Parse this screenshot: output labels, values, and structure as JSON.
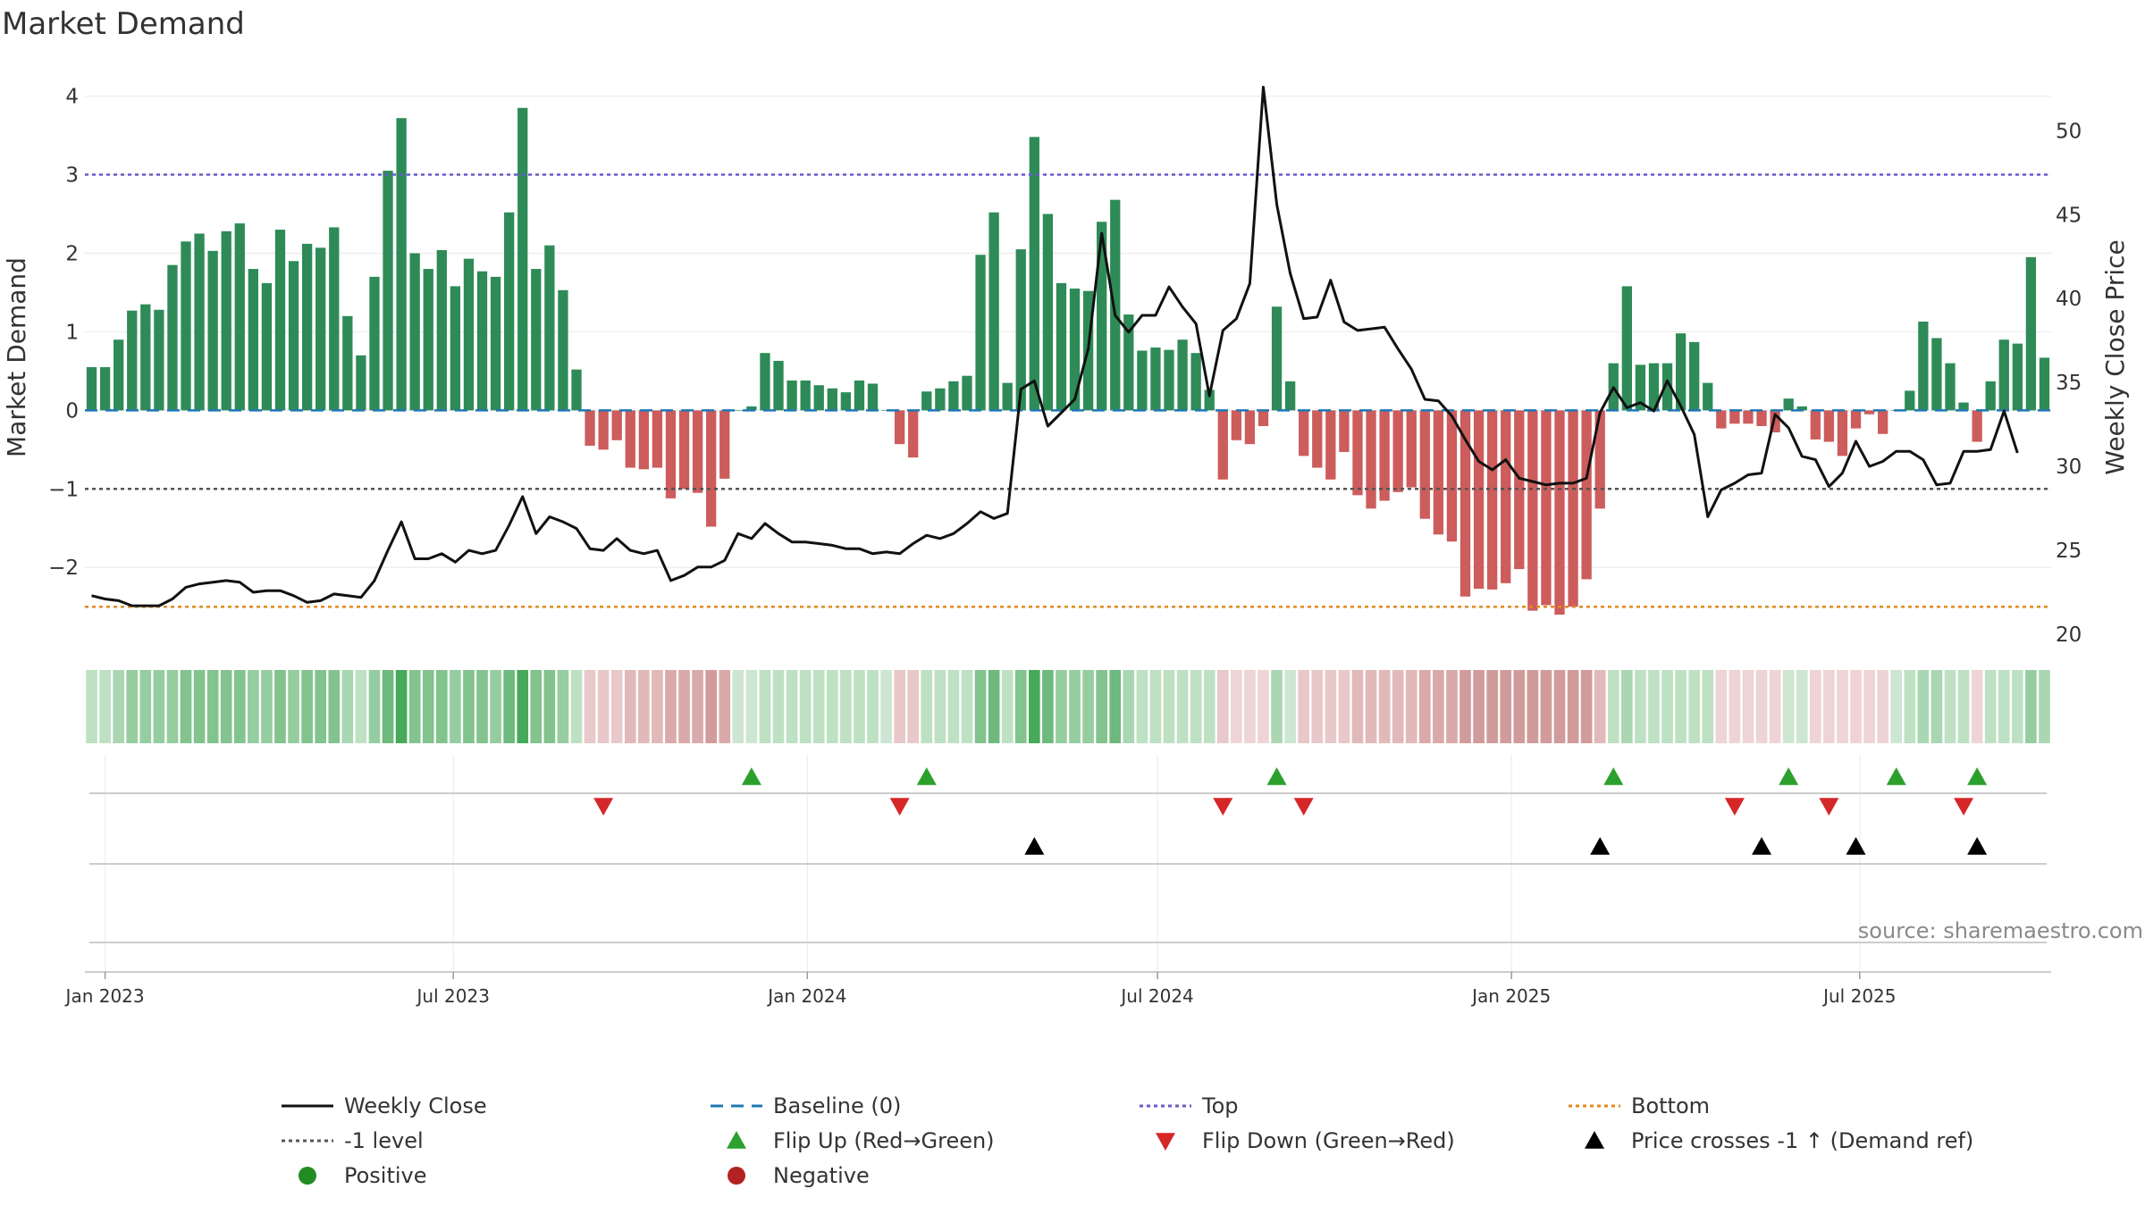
{
  "title": "Market Demand",
  "source_label": "source: sharemaestro.com",
  "colors": {
    "positive_bar": "#2e8b57",
    "negative_bar": "#cd5c5c",
    "close_line": "#111111",
    "baseline": "#1f77b4",
    "top": "#6a5acd",
    "bottom": "#e08a1e",
    "minus_one": "#555555",
    "flip_up": "#2ca02c",
    "flip_down": "#d62728",
    "cross": "#000000",
    "positive_dot": "#228b22",
    "negative_dot": "#b22222"
  },
  "chart_data": {
    "type": "bar+line",
    "title": "Market Demand",
    "ylabel_left": "Market Demand",
    "ylabel_right": "Weekly Close Price",
    "ylim_left": [
      -2.85,
      4.2
    ],
    "yticks_left": [
      4,
      3,
      2,
      1,
      0,
      -1,
      -2
    ],
    "ytick_labels_left": [
      "4",
      "3",
      "2",
      "1",
      "0",
      "−1",
      "−2"
    ],
    "ylim_right": [
      20,
      53
    ],
    "yticks_right": [
      50,
      45,
      40,
      35,
      30,
      25,
      20
    ],
    "ytick_labels_right": [
      "50",
      "45",
      "40",
      "35",
      "30",
      "25",
      "20"
    ],
    "x_start": "2022-12-25",
    "x_ticks": [
      {
        "date": "2023-01-01",
        "label": "Jan 2023"
      },
      {
        "date": "2023-07-01",
        "label": "Jul 2023"
      },
      {
        "date": "2024-01-01",
        "label": "Jan 2024"
      },
      {
        "date": "2024-07-01",
        "label": "Jul 2024"
      },
      {
        "date": "2025-01-01",
        "label": "Jan 2025"
      },
      {
        "date": "2025-07-01",
        "label": "Jul 2025"
      }
    ],
    "reference_lines": {
      "baseline": 0,
      "top": 3.0,
      "bottom": -2.5,
      "minus_one": -1.0
    },
    "demand": [
      0.55,
      0.55,
      0.9,
      1.27,
      1.35,
      1.28,
      1.85,
      2.15,
      2.25,
      2.03,
      2.28,
      2.38,
      1.8,
      1.62,
      2.3,
      1.9,
      2.12,
      2.07,
      2.33,
      1.2,
      0.7,
      1.7,
      3.05,
      3.72,
      2.0,
      1.8,
      2.04,
      1.58,
      1.93,
      1.77,
      1.7,
      2.52,
      3.85,
      1.8,
      2.1,
      1.53,
      0.52,
      -0.45,
      -0.5,
      -0.38,
      -0.73,
      -0.75,
      -0.73,
      -1.12,
      -1.0,
      -1.05,
      -1.48,
      -0.87,
      0.0,
      0.05,
      0.73,
      0.63,
      0.38,
      0.38,
      0.32,
      0.28,
      0.23,
      0.38,
      0.34,
      0.0,
      -0.43,
      -0.6,
      0.24,
      0.28,
      0.37,
      0.44,
      1.98,
      2.52,
      0.35,
      2.05,
      3.48,
      2.5,
      1.62,
      1.55,
      1.52,
      2.4,
      2.68,
      1.22,
      0.76,
      0.8,
      0.77,
      0.9,
      0.73,
      0.26,
      -0.88,
      -0.38,
      -0.43,
      -0.2,
      1.32,
      0.37,
      -0.58,
      -0.73,
      -0.88,
      -0.53,
      -1.08,
      -1.25,
      -1.15,
      -1.04,
      -0.98,
      -1.38,
      -1.58,
      -1.67,
      -2.37,
      -2.27,
      -2.28,
      -2.2,
      -2.02,
      -2.55,
      -2.48,
      -2.6,
      -2.5,
      -2.15,
      -1.25,
      0.6,
      1.58,
      0.58,
      0.6,
      0.6,
      0.98,
      0.87,
      0.35,
      -0.23,
      -0.17,
      -0.17,
      -0.2,
      -0.28,
      0.15,
      0.05,
      -0.37,
      -0.4,
      -0.58,
      -0.23,
      -0.05,
      -0.3,
      0.0,
      0.25,
      1.13,
      0.92,
      0.6,
      0.1,
      -0.4,
      0.37,
      0.9,
      0.85,
      1.95,
      0.67
    ],
    "close": [
      22.3,
      22.1,
      22.0,
      21.7,
      21.7,
      21.7,
      22.1,
      22.8,
      23.0,
      23.1,
      23.2,
      23.1,
      22.5,
      22.6,
      22.6,
      22.3,
      21.9,
      22.0,
      22.4,
      22.3,
      22.2,
      23.2,
      25.0,
      26.7,
      24.5,
      24.5,
      24.8,
      24.3,
      25.0,
      24.8,
      25.0,
      26.5,
      28.2,
      26.0,
      27.0,
      26.7,
      26.3,
      25.1,
      25.0,
      25.7,
      25.0,
      24.8,
      25.0,
      23.2,
      23.5,
      24.0,
      24.0,
      24.4,
      26.0,
      25.7,
      26.6,
      26.0,
      25.5,
      25.5,
      25.4,
      25.3,
      25.1,
      25.1,
      24.8,
      24.9,
      24.8,
      25.4,
      25.9,
      25.7,
      26.0,
      26.6,
      27.3,
      26.9,
      27.2,
      34.6,
      35.1,
      32.4,
      33.2,
      34.0,
      37.0,
      43.9,
      39.0,
      38.0,
      39.0,
      39.0,
      40.7,
      39.5,
      38.5,
      34.2,
      38.1,
      38.8,
      40.9,
      52.6,
      45.6,
      41.5,
      38.8,
      38.9,
      41.1,
      38.6,
      38.1,
      38.2,
      38.3,
      37.0,
      35.8,
      34.0,
      33.9,
      33.0,
      31.6,
      30.3,
      29.8,
      30.4,
      29.3,
      29.1,
      28.9,
      29.0,
      29.0,
      29.3,
      33.2,
      34.7,
      33.5,
      33.8,
      33.3,
      35.1,
      33.6,
      31.9,
      27.0,
      28.6,
      29.0,
      29.5,
      29.6,
      33.1,
      32.3,
      30.6,
      30.4,
      28.8,
      29.6,
      31.5,
      30.0,
      30.3,
      30.9,
      30.9,
      30.4,
      28.9,
      29.0,
      30.9,
      30.9,
      31.0,
      33.3,
      30.8
    ],
    "strip": [
      [
        190,
        225,
        195
      ],
      [
        190,
        225,
        195
      ],
      [
        170,
        215,
        178
      ],
      [
        150,
        205,
        160
      ],
      [
        150,
        205,
        160
      ],
      [
        150,
        205,
        160
      ],
      [
        150,
        205,
        160
      ],
      [
        130,
        195,
        142
      ],
      [
        130,
        195,
        142
      ],
      [
        130,
        195,
        142
      ],
      [
        130,
        195,
        142
      ],
      [
        130,
        195,
        142
      ],
      [
        150,
        205,
        160
      ],
      [
        150,
        205,
        160
      ],
      [
        130,
        195,
        142
      ],
      [
        150,
        205,
        160
      ],
      [
        130,
        195,
        142
      ],
      [
        130,
        195,
        142
      ],
      [
        130,
        195,
        142
      ],
      [
        170,
        215,
        178
      ],
      [
        190,
        225,
        195
      ],
      [
        150,
        205,
        160
      ],
      [
        110,
        185,
        125
      ],
      [
        70,
        170,
        90
      ],
      [
        130,
        195,
        142
      ],
      [
        130,
        195,
        142
      ],
      [
        130,
        195,
        142
      ],
      [
        150,
        205,
        160
      ],
      [
        130,
        195,
        142
      ],
      [
        130,
        195,
        142
      ],
      [
        150,
        205,
        160
      ],
      [
        110,
        185,
        125
      ],
      [
        70,
        170,
        90
      ],
      [
        130,
        195,
        142
      ],
      [
        130,
        195,
        142
      ],
      [
        150,
        205,
        160
      ],
      [
        190,
        225,
        195
      ],
      [
        232,
        200,
        200
      ],
      [
        232,
        200,
        200
      ],
      [
        232,
        200,
        200
      ],
      [
        225,
        185,
        185
      ],
      [
        225,
        185,
        185
      ],
      [
        225,
        185,
        185
      ],
      [
        218,
        170,
        170
      ],
      [
        218,
        170,
        170
      ],
      [
        218,
        170,
        170
      ],
      [
        210,
        155,
        155
      ],
      [
        218,
        170,
        170
      ],
      [
        205,
        230,
        210
      ],
      [
        205,
        230,
        210
      ],
      [
        190,
        225,
        195
      ],
      [
        190,
        225,
        195
      ],
      [
        190,
        225,
        195
      ],
      [
        190,
        225,
        195
      ],
      [
        190,
        225,
        195
      ],
      [
        190,
        225,
        195
      ],
      [
        190,
        225,
        195
      ],
      [
        190,
        225,
        195
      ],
      [
        190,
        225,
        195
      ],
      [
        205,
        230,
        210
      ],
      [
        232,
        200,
        200
      ],
      [
        232,
        200,
        200
      ],
      [
        190,
        225,
        195
      ],
      [
        190,
        225,
        195
      ],
      [
        190,
        225,
        195
      ],
      [
        190,
        225,
        195
      ],
      [
        130,
        195,
        142
      ],
      [
        110,
        185,
        125
      ],
      [
        190,
        225,
        195
      ],
      [
        130,
        195,
        142
      ],
      [
        70,
        170,
        90
      ],
      [
        110,
        185,
        125
      ],
      [
        150,
        205,
        160
      ],
      [
        150,
        205,
        160
      ],
      [
        150,
        205,
        160
      ],
      [
        130,
        195,
        142
      ],
      [
        110,
        185,
        125
      ],
      [
        170,
        215,
        178
      ],
      [
        190,
        225,
        195
      ],
      [
        190,
        225,
        195
      ],
      [
        190,
        225,
        195
      ],
      [
        190,
        225,
        195
      ],
      [
        190,
        225,
        195
      ],
      [
        190,
        225,
        195
      ],
      [
        232,
        200,
        200
      ],
      [
        238,
        212,
        212
      ],
      [
        238,
        212,
        212
      ],
      [
        238,
        212,
        212
      ],
      [
        170,
        215,
        178
      ],
      [
        205,
        230,
        210
      ],
      [
        232,
        200,
        200
      ],
      [
        232,
        200,
        200
      ],
      [
        232,
        200,
        200
      ],
      [
        232,
        200,
        200
      ],
      [
        225,
        185,
        185
      ],
      [
        225,
        185,
        185
      ],
      [
        225,
        185,
        185
      ],
      [
        225,
        185,
        185
      ],
      [
        225,
        185,
        185
      ],
      [
        218,
        170,
        170
      ],
      [
        218,
        170,
        170
      ],
      [
        218,
        170,
        170
      ],
      [
        210,
        155,
        155
      ],
      [
        210,
        155,
        155
      ],
      [
        210,
        155,
        155
      ],
      [
        210,
        155,
        155
      ],
      [
        210,
        155,
        155
      ],
      [
        210,
        155,
        155
      ],
      [
        210,
        155,
        155
      ],
      [
        210,
        155,
        155
      ],
      [
        210,
        155,
        155
      ],
      [
        210,
        155,
        155
      ],
      [
        225,
        185,
        185
      ],
      [
        190,
        225,
        195
      ],
      [
        170,
        215,
        178
      ],
      [
        190,
        225,
        195
      ],
      [
        190,
        225,
        195
      ],
      [
        190,
        225,
        195
      ],
      [
        190,
        225,
        195
      ],
      [
        190,
        225,
        195
      ],
      [
        190,
        225,
        195
      ],
      [
        238,
        212,
        212
      ],
      [
        238,
        212,
        212
      ],
      [
        238,
        212,
        212
      ],
      [
        238,
        212,
        212
      ],
      [
        238,
        212,
        212
      ],
      [
        205,
        230,
        210
      ],
      [
        205,
        230,
        210
      ],
      [
        238,
        212,
        212
      ],
      [
        238,
        212,
        212
      ],
      [
        238,
        212,
        212
      ],
      [
        238,
        212,
        212
      ],
      [
        238,
        212,
        212
      ],
      [
        238,
        212,
        212
      ],
      [
        205,
        230,
        210
      ],
      [
        190,
        225,
        195
      ],
      [
        170,
        215,
        178
      ],
      [
        170,
        215,
        178
      ],
      [
        190,
        225,
        195
      ],
      [
        190,
        225,
        195
      ],
      [
        238,
        212,
        212
      ],
      [
        190,
        225,
        195
      ],
      [
        190,
        225,
        195
      ],
      [
        190,
        225,
        195
      ],
      [
        150,
        205,
        160
      ],
      [
        170,
        215,
        178
      ]
    ],
    "flip_up_weeks": [
      49,
      62,
      88,
      113,
      126,
      134,
      140
    ],
    "flip_down_weeks": [
      38,
      60,
      84,
      90,
      122,
      129,
      139
    ],
    "cross_weeks": [
      70,
      112,
      124,
      131,
      140
    ]
  },
  "legend": [
    {
      "label": "Weekly Close",
      "symbol": "line",
      "color": "#111111"
    },
    {
      "label": "Baseline (0)",
      "symbol": "dash",
      "color": "#1f77b4"
    },
    {
      "label": "Top",
      "symbol": "dot",
      "color": "#6a5acd"
    },
    {
      "label": "Bottom",
      "symbol": "dot",
      "color": "#e08a1e"
    },
    {
      "label": "-1 level",
      "symbol": "dot",
      "color": "#555555"
    },
    {
      "label": "Flip Up (Red→Green)",
      "symbol": "tri-up",
      "color": "#2ca02c"
    },
    {
      "label": "Flip Down (Green→Red)",
      "symbol": "tri-down",
      "color": "#d62728"
    },
    {
      "label": "Price crosses -1 ↑ (Demand ref)",
      "symbol": "tri-up",
      "color": "#000000"
    },
    {
      "label": "Positive",
      "symbol": "circle",
      "color": "#228b22"
    },
    {
      "label": "Negative",
      "symbol": "circle",
      "color": "#b22222"
    }
  ]
}
